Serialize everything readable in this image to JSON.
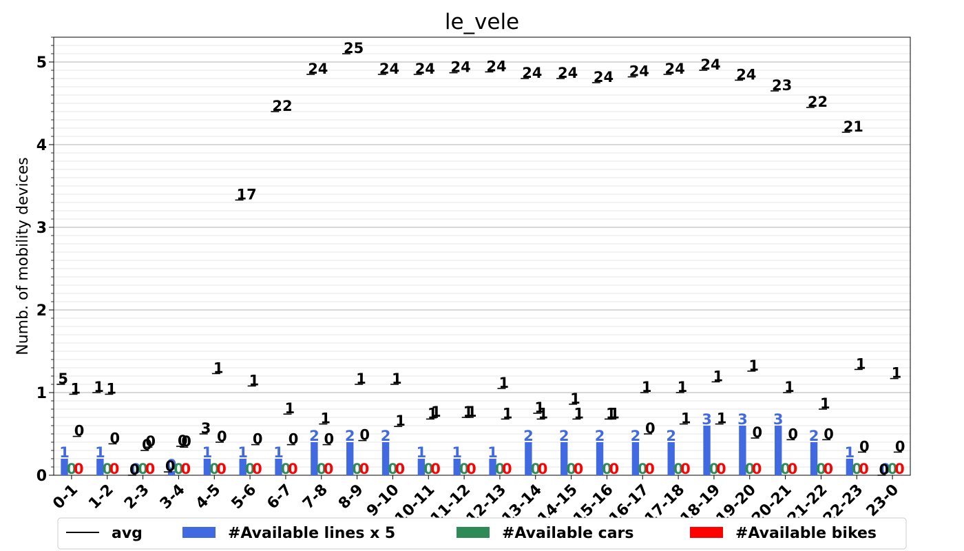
{
  "chart_data": {
    "type": "bar",
    "title": "le_vele",
    "xlabel": "",
    "ylabel": "Numb. of mobility devices",
    "ylim": [
      0,
      5.3
    ],
    "yticks": [
      "0",
      "1",
      "2",
      "3",
      "4",
      "5"
    ],
    "grid": true,
    "legend_position": "bottom",
    "categories": [
      "0-1",
      "1-2",
      "2-3",
      "3-4",
      "4-5",
      "5-6",
      "6-7",
      "7-8",
      "8-9",
      "9-10",
      "10-11",
      "11-12",
      "12-13",
      "13-14",
      "14-15",
      "15-16",
      "16-17",
      "17-18",
      "18-19",
      "19-20",
      "20-21",
      "21-22",
      "22-23",
      "23-0"
    ],
    "series": [
      {
        "name": "avg",
        "kind": "line-marker",
        "color": "#000000",
        "values": [
          1.1,
          1.0,
          0.0,
          0.04,
          0.5,
          3.33,
          4.4,
          4.85,
          5.1,
          4.85,
          4.85,
          4.87,
          4.88,
          4.8,
          4.8,
          4.75,
          4.82,
          4.85,
          4.9,
          4.78,
          4.65,
          4.45,
          4.15,
          0.0
        ],
        "labels": [
          "5",
          "1",
          "0",
          "0",
          "3",
          "17",
          "22",
          "24",
          "25",
          "24",
          "24",
          "24",
          "24",
          "24",
          "24",
          "24",
          "24",
          "24",
          "24",
          "24",
          "23",
          "22",
          "21",
          "0"
        ]
      },
      {
        "name": "avg",
        "kind": "line-marker",
        "color": "#000000",
        "values": [
          0.98,
          0.98,
          0.3,
          0.35,
          1.23,
          1.08,
          0.74,
          0.62,
          1.1,
          1.1,
          0.68,
          0.7,
          1.05,
          0.75,
          0.86,
          0.68,
          1.0,
          1.0,
          1.13,
          1.26,
          1.0,
          0.8,
          1.28,
          1.17
        ],
        "labels": [
          "1",
          "1",
          "0",
          "0",
          "1",
          "1",
          "1",
          "1",
          "1",
          "1",
          "1",
          "1",
          "1",
          "1",
          "1",
          "1",
          "1",
          "1",
          "1",
          "1",
          "1",
          "1",
          "1",
          "1"
        ]
      },
      {
        "name": "avg",
        "kind": "line-marker",
        "color": "#000000",
        "values": [
          0.47,
          0.38,
          0.34,
          0.34,
          0.4,
          0.37,
          0.37,
          0.37,
          0.42,
          0.59,
          0.7,
          0.7,
          0.68,
          0.68,
          0.68,
          0.68,
          0.5,
          0.62,
          0.62,
          0.45,
          0.43,
          0.43,
          0.28,
          0.28
        ],
        "labels": [
          "0",
          "0",
          "0",
          "0",
          "0",
          "0",
          "0",
          "0",
          "0",
          "1",
          "1",
          "1",
          "1",
          "1",
          "1",
          "1",
          "0",
          "1",
          "1",
          "0",
          "0",
          "0",
          "0",
          "0"
        ]
      },
      {
        "name": "#Available lines x 5",
        "kind": "bar",
        "color": "#4169e1",
        "values": [
          0.2,
          0.2,
          0,
          0.05,
          0.2,
          0.2,
          0.2,
          0.4,
          0.4,
          0.4,
          0.2,
          0.2,
          0.2,
          0.4,
          0.4,
          0.4,
          0.4,
          0.4,
          0.6,
          0.6,
          0.6,
          0.4,
          0.2,
          0
        ],
        "labels": [
          "1",
          "1",
          "0",
          "0",
          "1",
          "1",
          "1",
          "2",
          "2",
          "2",
          "1",
          "1",
          "1",
          "2",
          "2",
          "2",
          "2",
          "2",
          "3",
          "3",
          "3",
          "2",
          "1",
          "0"
        ]
      },
      {
        "name": "#Available cars",
        "kind": "bar",
        "color": "#2e8b57",
        "values": [
          0,
          0,
          0,
          0,
          0,
          0,
          0,
          0,
          0,
          0,
          0,
          0,
          0,
          0,
          0,
          0,
          0,
          0,
          0,
          0,
          0,
          0,
          0,
          0
        ],
        "labels": [
          "0",
          "0",
          "0",
          "0",
          "0",
          "0",
          "0",
          "0",
          "0",
          "0",
          "0",
          "0",
          "0",
          "0",
          "0",
          "0",
          "0",
          "0",
          "0",
          "0",
          "0",
          "0",
          "0",
          "0"
        ]
      },
      {
        "name": "#Available bikes",
        "kind": "bar",
        "color": "#ff0000",
        "values": [
          0,
          0,
          0,
          0,
          0,
          0,
          0,
          0,
          0,
          0,
          0,
          0,
          0,
          0,
          0,
          0,
          0,
          0,
          0,
          0,
          0,
          0,
          0,
          0
        ],
        "labels": [
          "0",
          "0",
          "0",
          "0",
          "0",
          "0",
          "0",
          "0",
          "0",
          "0",
          "0",
          "0",
          "0",
          "0",
          "0",
          "0",
          "0",
          "0",
          "0",
          "0",
          "0",
          "0",
          "0",
          "0"
        ]
      }
    ],
    "legend": [
      {
        "label": "avg",
        "kind": "line",
        "color": "#000000"
      },
      {
        "label": "#Available lines x 5",
        "kind": "patch",
        "color": "#4169e1"
      },
      {
        "label": "#Available cars",
        "kind": "patch",
        "color": "#2e8b57"
      },
      {
        "label": "#Available bikes",
        "kind": "patch",
        "color": "#ff0000"
      }
    ]
  }
}
